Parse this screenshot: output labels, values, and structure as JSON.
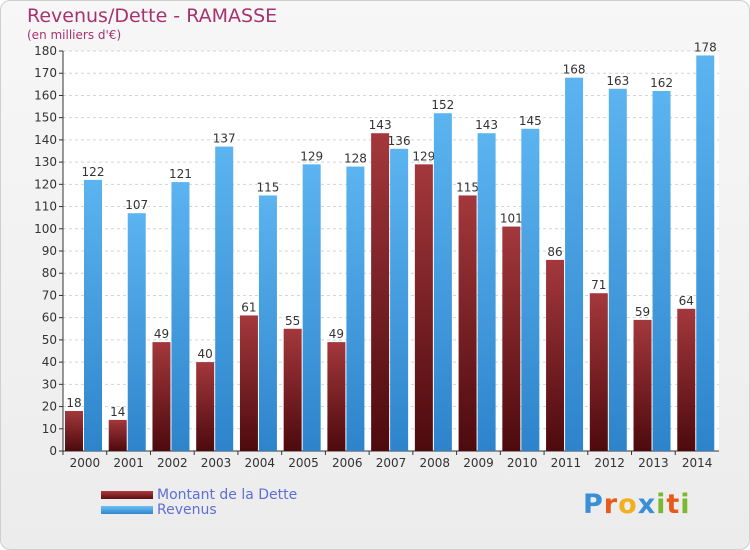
{
  "header": {
    "title": "Revenus/Dette - RAMASSE",
    "subtitle": "(en milliers d'€)"
  },
  "chart_data": {
    "type": "bar",
    "title": "Revenus/Dette - RAMASSE",
    "ylabel": "(en milliers d'€)",
    "xlabel": "",
    "ylim": [
      0,
      180
    ],
    "ytick_step": 10,
    "grid": true,
    "legend_position": "bottom-left",
    "categories": [
      "2000",
      "2001",
      "2002",
      "2003",
      "2004",
      "2005",
      "2006",
      "2007",
      "2008",
      "2009",
      "2010",
      "2011",
      "2012",
      "2013",
      "2014"
    ],
    "series": [
      {
        "name": "Montant de la Dette",
        "color": "#7a1c1f",
        "values": [
          18,
          14,
          49,
          40,
          61,
          55,
          49,
          143,
          129,
          115,
          101,
          86,
          71,
          59,
          64
        ]
      },
      {
        "name": "Revenus",
        "color": "#3a9de3",
        "values": [
          122,
          107,
          121,
          137,
          115,
          129,
          128,
          136,
          152,
          143,
          145,
          168,
          163,
          162,
          178
        ]
      }
    ]
  },
  "legend": {
    "debt_label": "Montant de la Dette",
    "revenue_label": "Revenus"
  },
  "logo": {
    "text": "Proxiti",
    "letters": [
      "P",
      "r",
      "o",
      "x",
      "i",
      "t",
      "i"
    ],
    "colors": [
      "#3a8fd9",
      "#e85a1c",
      "#f2b01e",
      "#3a8fd9",
      "#7ab82e",
      "#e85a1c",
      "#7ab82e"
    ]
  }
}
